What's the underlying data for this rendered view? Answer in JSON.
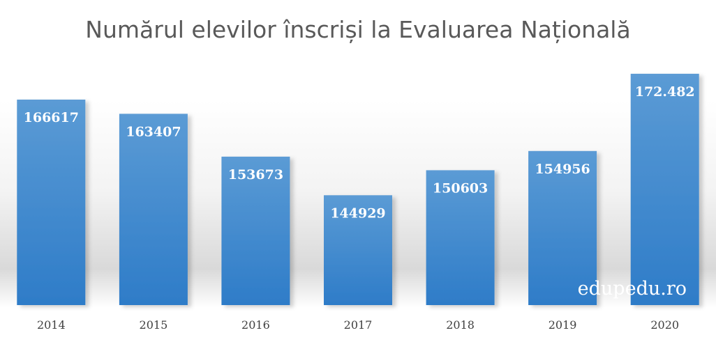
{
  "chart_data": {
    "type": "bar",
    "title": "Numărul elevilor înscriși la Evaluarea Națională",
    "categories": [
      "2014",
      "2015",
      "2016",
      "2017",
      "2018",
      "2019",
      "2020"
    ],
    "values": [
      166617,
      163407,
      153673,
      144929,
      150603,
      154956,
      172482
    ],
    "data_labels": [
      "166617",
      "163407",
      "153673",
      "144929",
      "150603",
      "154956",
      "172.482"
    ],
    "ylim": [
      120000,
      175000
    ],
    "grid": false,
    "legend": "none",
    "bar_color_top": "#5b9bd5",
    "bar_color_bottom": "#2e7cc8"
  },
  "watermark": "edupedu.ro"
}
